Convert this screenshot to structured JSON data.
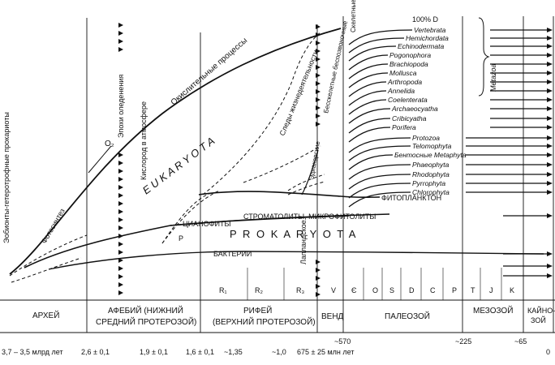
{
  "vertical_left": "Эобионты-гетеротрофные прокариоты",
  "curves": {
    "photosynthesis": "Фотосинтез",
    "o2": "O₂",
    "oxygen": "Кислород в атмосфере",
    "glaciation": "Эпохи оледенения",
    "oxidative": "Окислительные процессы",
    "eukaryota": "E U K A R Y O T A",
    "prokaryota": "P R O K A R Y O T A",
    "p_mark": "P",
    "traces": "Следы жизнедеятельности",
    "skeletal": "Скелетные беспозвоночные",
    "noskel": "Бесскелетные беспозвоночные",
    "ediacara": "Эдиакарские",
    "laplandian": "Лапландское",
    "phytoplankton": "ФИТОПЛАНКТОН",
    "stromatolites": "СТРОМАТОЛИТЫ, МИКРОФИТОЛИТЫ",
    "cyanophytes": "ЦИАНОФИТЫ",
    "bacteria": "БАКТЕРИИ",
    "hundred": "100% D",
    "metazoa": "Metazoa"
  },
  "taxa": [
    "Vertebrata",
    "Hemichordata",
    "Echinodermata",
    "Pogonophora",
    "Brachiopoda",
    "Mollusca",
    "Arthropoda",
    "Annelida",
    "Coelenterata",
    "Archaeocyatha",
    "Cribicyatha",
    "Porifera",
    "Protozoa",
    "Telomophyta",
    "Бентосные Metaphyta",
    "Phaeophyta",
    "Rhodophyta",
    "Pyrrophyta",
    "Chlorophyta"
  ],
  "periods": [
    "R₁",
    "R₂",
    "R₃",
    "V",
    "Є",
    "O",
    "S",
    "D",
    "C",
    "P",
    "T",
    "J",
    "K"
  ],
  "eras": [
    "АРХЕЙ",
    "АФЕБИЙ (НИЖНИЙ",
    "СРЕДНИЙ ПРОТЕРОЗОЙ)",
    "РИФЕЙ",
    "(ВЕРХНИЙ ПРОТЕРОЗОЙ)",
    "ВЕНД",
    "ПАЛЕОЗОЙ",
    "МЕЗОЗОЙ",
    "КАЙНО-",
    "ЗОЙ"
  ],
  "dates": [
    "3,7 – 3,5 млрд лет",
    "2,6 ± 0,1",
    "1,9 ± 0,1",
    "1,6 ± 0,1",
    "~1,35",
    "~1,0",
    "675 ± 25 млн лет",
    "~570",
    "~225",
    "~65",
    "0"
  ]
}
